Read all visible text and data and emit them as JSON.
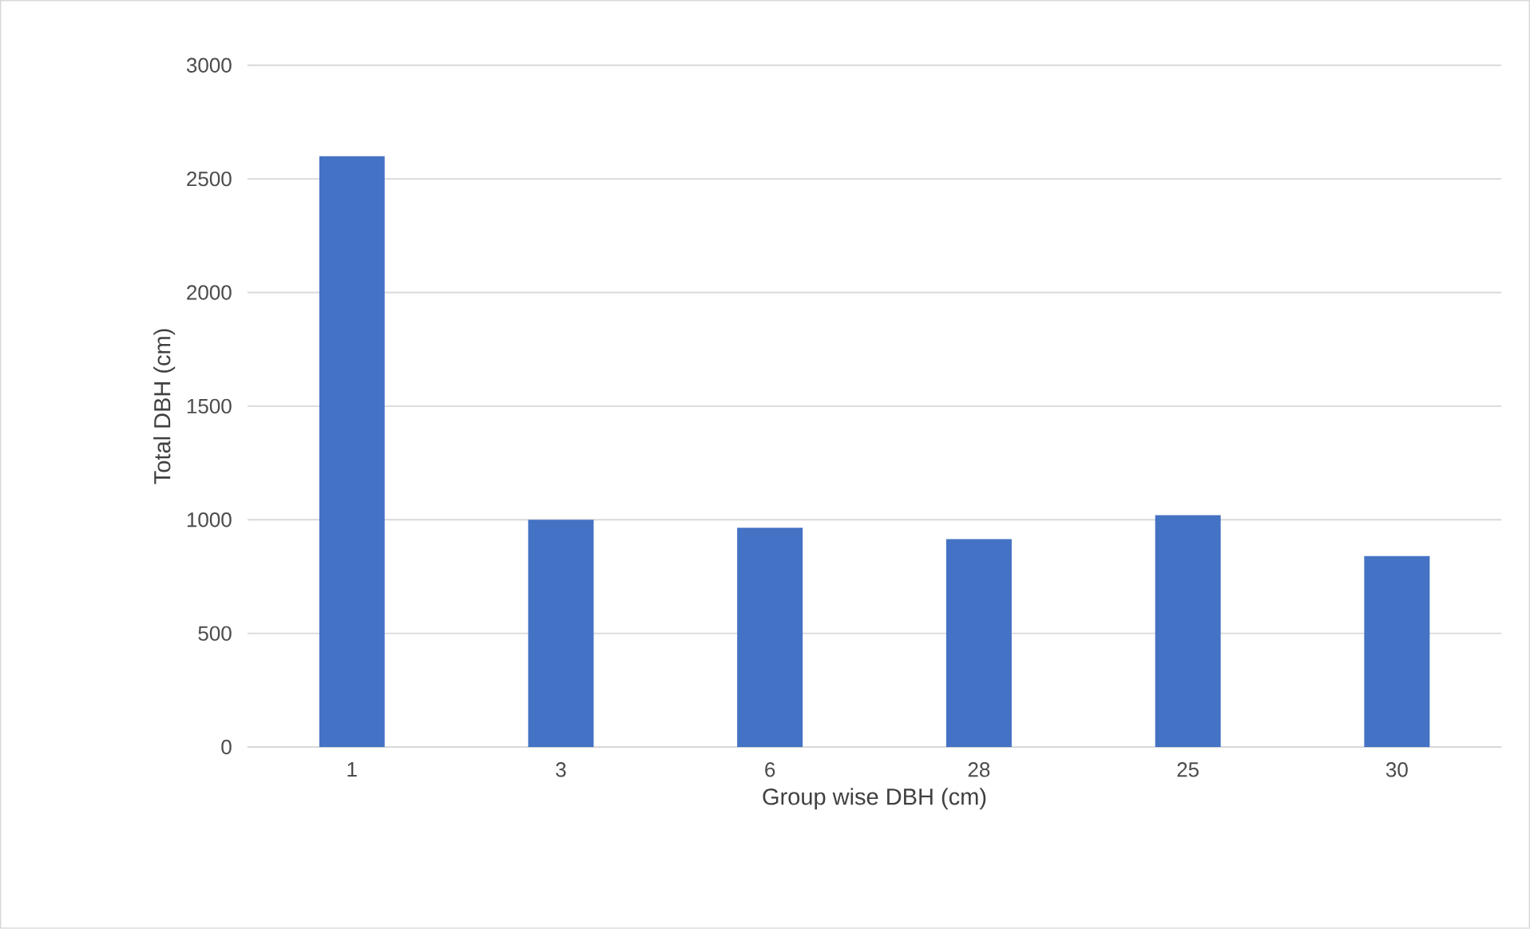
{
  "chart_data": {
    "type": "bar",
    "xlabel": "Group wise DBH (cm)",
    "ylabel": "Total DBH (cm)",
    "categories": [
      "1",
      "3",
      "6",
      "28",
      "25",
      "30"
    ],
    "values": [
      2600,
      1000,
      965,
      915,
      1020,
      840
    ],
    "color": "#4472c4",
    "ylim": [
      0,
      3000
    ],
    "yticks": [
      0,
      500,
      1000,
      1500,
      2000,
      2500,
      3000
    ],
    "grid": "y"
  }
}
